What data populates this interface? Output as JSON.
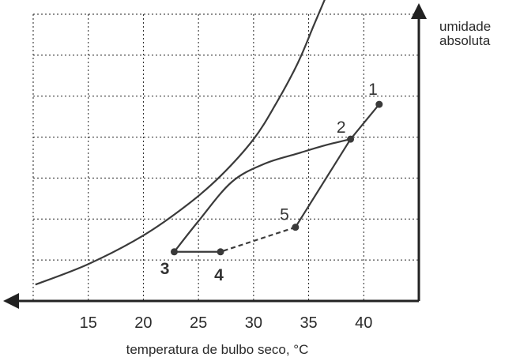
{
  "chart_data": {
    "type": "line",
    "title": "",
    "xlabel": "temperatura de bulbo seco, °C",
    "ylabel_lines": [
      "umidade",
      "absoluta"
    ],
    "x_ticks": [
      15,
      20,
      25,
      30,
      35,
      40
    ],
    "xlim": [
      10,
      45
    ],
    "ylim": [
      0,
      7
    ],
    "y_tick_labels": "none",
    "grid": true,
    "grid_style": "dotted",
    "colors": {
      "axis": "#222222",
      "curve": "#3a3a3a",
      "grid": "#222222"
    },
    "curves": [
      {
        "id": "saturation",
        "x": [
          10.2,
          15,
          20,
          24,
          27,
          30,
          32,
          34,
          35.5,
          37
        ],
        "y": [
          0.4,
          0.9,
          1.6,
          2.35,
          3.05,
          3.95,
          4.8,
          5.8,
          6.75,
          7.7
        ]
      },
      {
        "id": "process-arc",
        "x": [
          22.8,
          25,
          28,
          31,
          34,
          36.5,
          38.8
        ],
        "y": [
          1.2,
          1.95,
          2.9,
          3.35,
          3.6,
          3.8,
          3.95
        ]
      }
    ],
    "points": [
      {
        "label": "1",
        "x": 41.4,
        "y": 4.8
      },
      {
        "label": "2",
        "x": 38.8,
        "y": 3.95
      },
      {
        "label": "3",
        "x": 22.8,
        "y": 1.2
      },
      {
        "label": "4",
        "x": 27.0,
        "y": 1.2
      },
      {
        "label": "5",
        "x": 33.8,
        "y": 1.8
      }
    ],
    "segments": [
      {
        "from": "1",
        "to": "2",
        "style": "solid"
      },
      {
        "from": "2",
        "to": "5",
        "style": "solid"
      },
      {
        "from": "5",
        "to": "4",
        "style": "dashed"
      },
      {
        "from": "4",
        "to": "3",
        "style": "solid"
      }
    ]
  }
}
